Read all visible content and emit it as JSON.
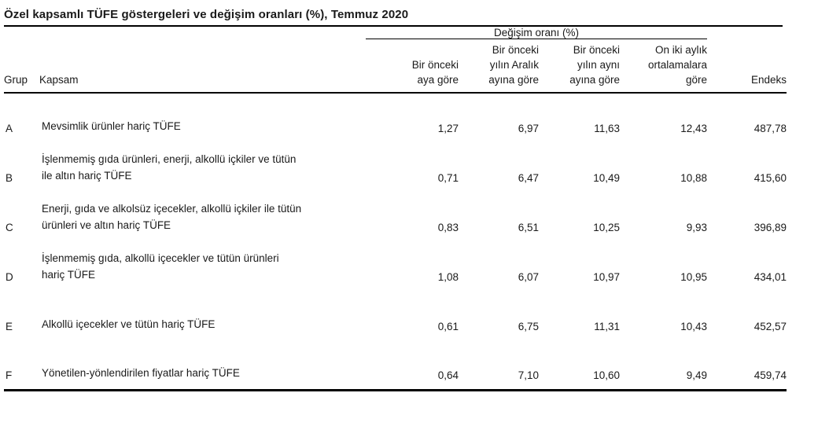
{
  "page": {
    "title": "Özel kapsamlı TÜFE göstergeleri ve değişim oranları (%), Temmuz 2020"
  },
  "table": {
    "span_header": "Değişim oranı (%)",
    "columns": {
      "grup": "Grup",
      "kapsam": "Kapsam",
      "prev_month": "Bir önceki\naya göre",
      "prev_december": "Bir önceki\nyılın Aralık\nayına göre",
      "prev_year_same_month": "Bir önceki\nyılın aynı\nayına göre",
      "twelve_month_avg": "On iki aylık\nortalamalara\ngöre",
      "endeks": "Endeks"
    },
    "rows": [
      {
        "grup": "A",
        "kapsam": "Mevsimlik ürünler hariç TÜFE",
        "values": [
          "1,27",
          "6,97",
          "11,63",
          "12,43",
          "487,78"
        ]
      },
      {
        "grup": "B",
        "kapsam": "İşlenmemiş gıda ürünleri, enerji, alkollü içkiler ve tütün\nile altın hariç TÜFE",
        "values": [
          "0,71",
          "6,47",
          "10,49",
          "10,88",
          "415,60"
        ]
      },
      {
        "grup": "C",
        "kapsam": "Enerji, gıda ve alkolsüz içecekler, alkollü içkiler ile tütün\nürünleri ve altın hariç TÜFE",
        "values": [
          "0,83",
          "6,51",
          "10,25",
          "9,93",
          "396,89"
        ]
      },
      {
        "grup": "D",
        "kapsam": "İşlenmemiş gıda, alkollü içecekler ve tütün ürünleri\nhariç TÜFE",
        "values": [
          "1,08",
          "6,07",
          "10,97",
          "10,95",
          "434,01"
        ]
      },
      {
        "grup": "E",
        "kapsam": "Alkollü içecekler ve tütün hariç TÜFE",
        "values": [
          "0,61",
          "6,75",
          "11,31",
          "10,43",
          "452,57"
        ]
      },
      {
        "grup": "F",
        "kapsam": "Yönetilen-yönlendirilen fiyatlar hariç TÜFE",
        "values": [
          "0,64",
          "7,10",
          "10,60",
          "9,49",
          "459,74"
        ]
      }
    ]
  },
  "colors": {
    "text": "#1a1a1a",
    "rule": "#000000",
    "background": "#ffffff"
  }
}
